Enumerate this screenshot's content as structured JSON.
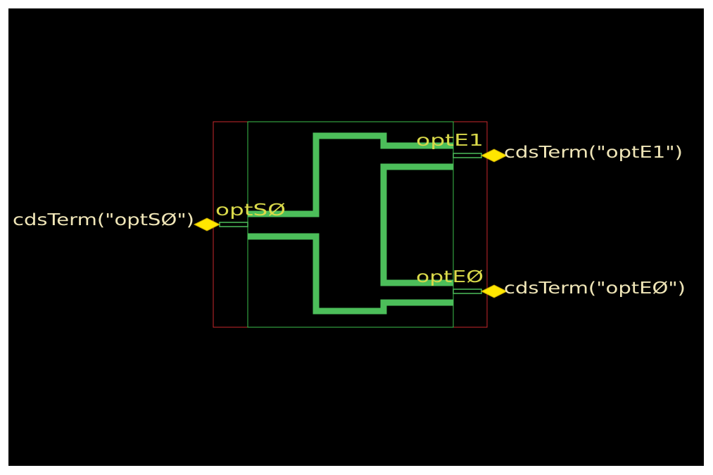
{
  "colors": {
    "canvas_background": "#000000",
    "page_background": "#ffffff",
    "boundary": "#c8282c",
    "inner_boundary": "#3cbf4c",
    "waveguide": "#4cbe5a",
    "pin_label": "#d9d94a",
    "term_label": "#f0e6b8",
    "terminal_marker": "#ffe600"
  },
  "cell": {
    "pins": [
      {
        "name": "optS0",
        "label": "optSØ"
      },
      {
        "name": "optE1",
        "label": "optE1"
      },
      {
        "name": "optE0",
        "label": "optEØ"
      }
    ],
    "terminals": [
      {
        "name": "optS0",
        "label": "cdsTerm(\"optSØ\")"
      },
      {
        "name": "optE1",
        "label": "cdsTerm(\"optE1\")"
      },
      {
        "name": "optE0",
        "label": "cdsTerm(\"optEØ\")"
      }
    ]
  }
}
